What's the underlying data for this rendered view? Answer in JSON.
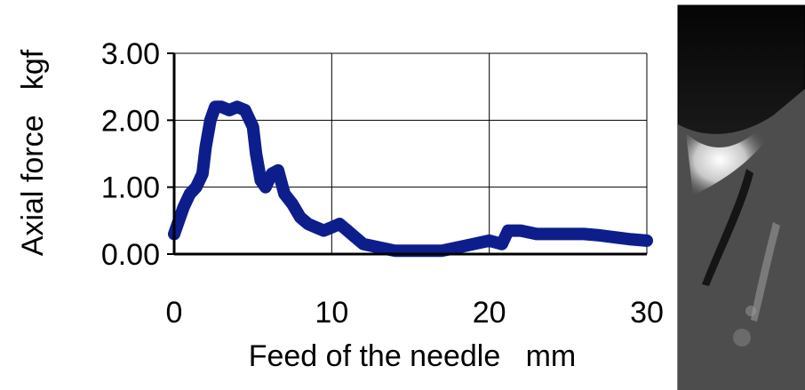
{
  "chart_data": {
    "type": "line",
    "xlabel": "Feed of the needle   mm",
    "ylabel": "Axial force   kgf",
    "xlim": [
      0,
      30
    ],
    "ylim": [
      0,
      3
    ],
    "x_ticks": [
      "0",
      "10",
      "20",
      "30"
    ],
    "y_ticks": [
      "0.00",
      "1.00",
      "2.00",
      "3.00"
    ],
    "grid": true,
    "legend": "none",
    "series_color": "#0d1e8c",
    "series": [
      {
        "x": [
          0,
          0.3,
          0.6,
          1.0,
          1.4,
          1.8,
          2.0,
          2.3,
          2.6,
          3.0,
          3.5,
          4.0,
          4.5,
          5.0,
          5.2,
          5.5,
          5.8,
          6.2,
          6.6,
          7.0,
          7.5,
          8.0,
          8.5,
          9.0,
          9.5,
          10.0,
          10.5,
          11.0,
          11.5,
          12.0,
          13.0,
          14.0,
          15.0,
          16.0,
          17.0,
          18.0,
          19.0,
          20.0,
          20.8,
          21.2,
          22.0,
          23.0,
          24.0,
          25.0,
          26.0,
          27.0,
          28.0,
          29.0,
          30.0
        ],
        "y": [
          0.3,
          0.5,
          0.7,
          0.9,
          1.0,
          1.2,
          1.6,
          2.0,
          2.2,
          2.2,
          2.15,
          2.2,
          2.15,
          1.9,
          1.5,
          1.1,
          1.0,
          1.2,
          1.25,
          0.9,
          0.75,
          0.55,
          0.45,
          0.4,
          0.35,
          0.4,
          0.45,
          0.35,
          0.25,
          0.15,
          0.1,
          0.05,
          0.05,
          0.05,
          0.05,
          0.1,
          0.15,
          0.2,
          0.15,
          0.35,
          0.35,
          0.3,
          0.3,
          0.3,
          0.3,
          0.28,
          0.25,
          0.22,
          0.2
        ]
      }
    ]
  },
  "side_image": {
    "description_icon": "grayscale-xray-image"
  }
}
